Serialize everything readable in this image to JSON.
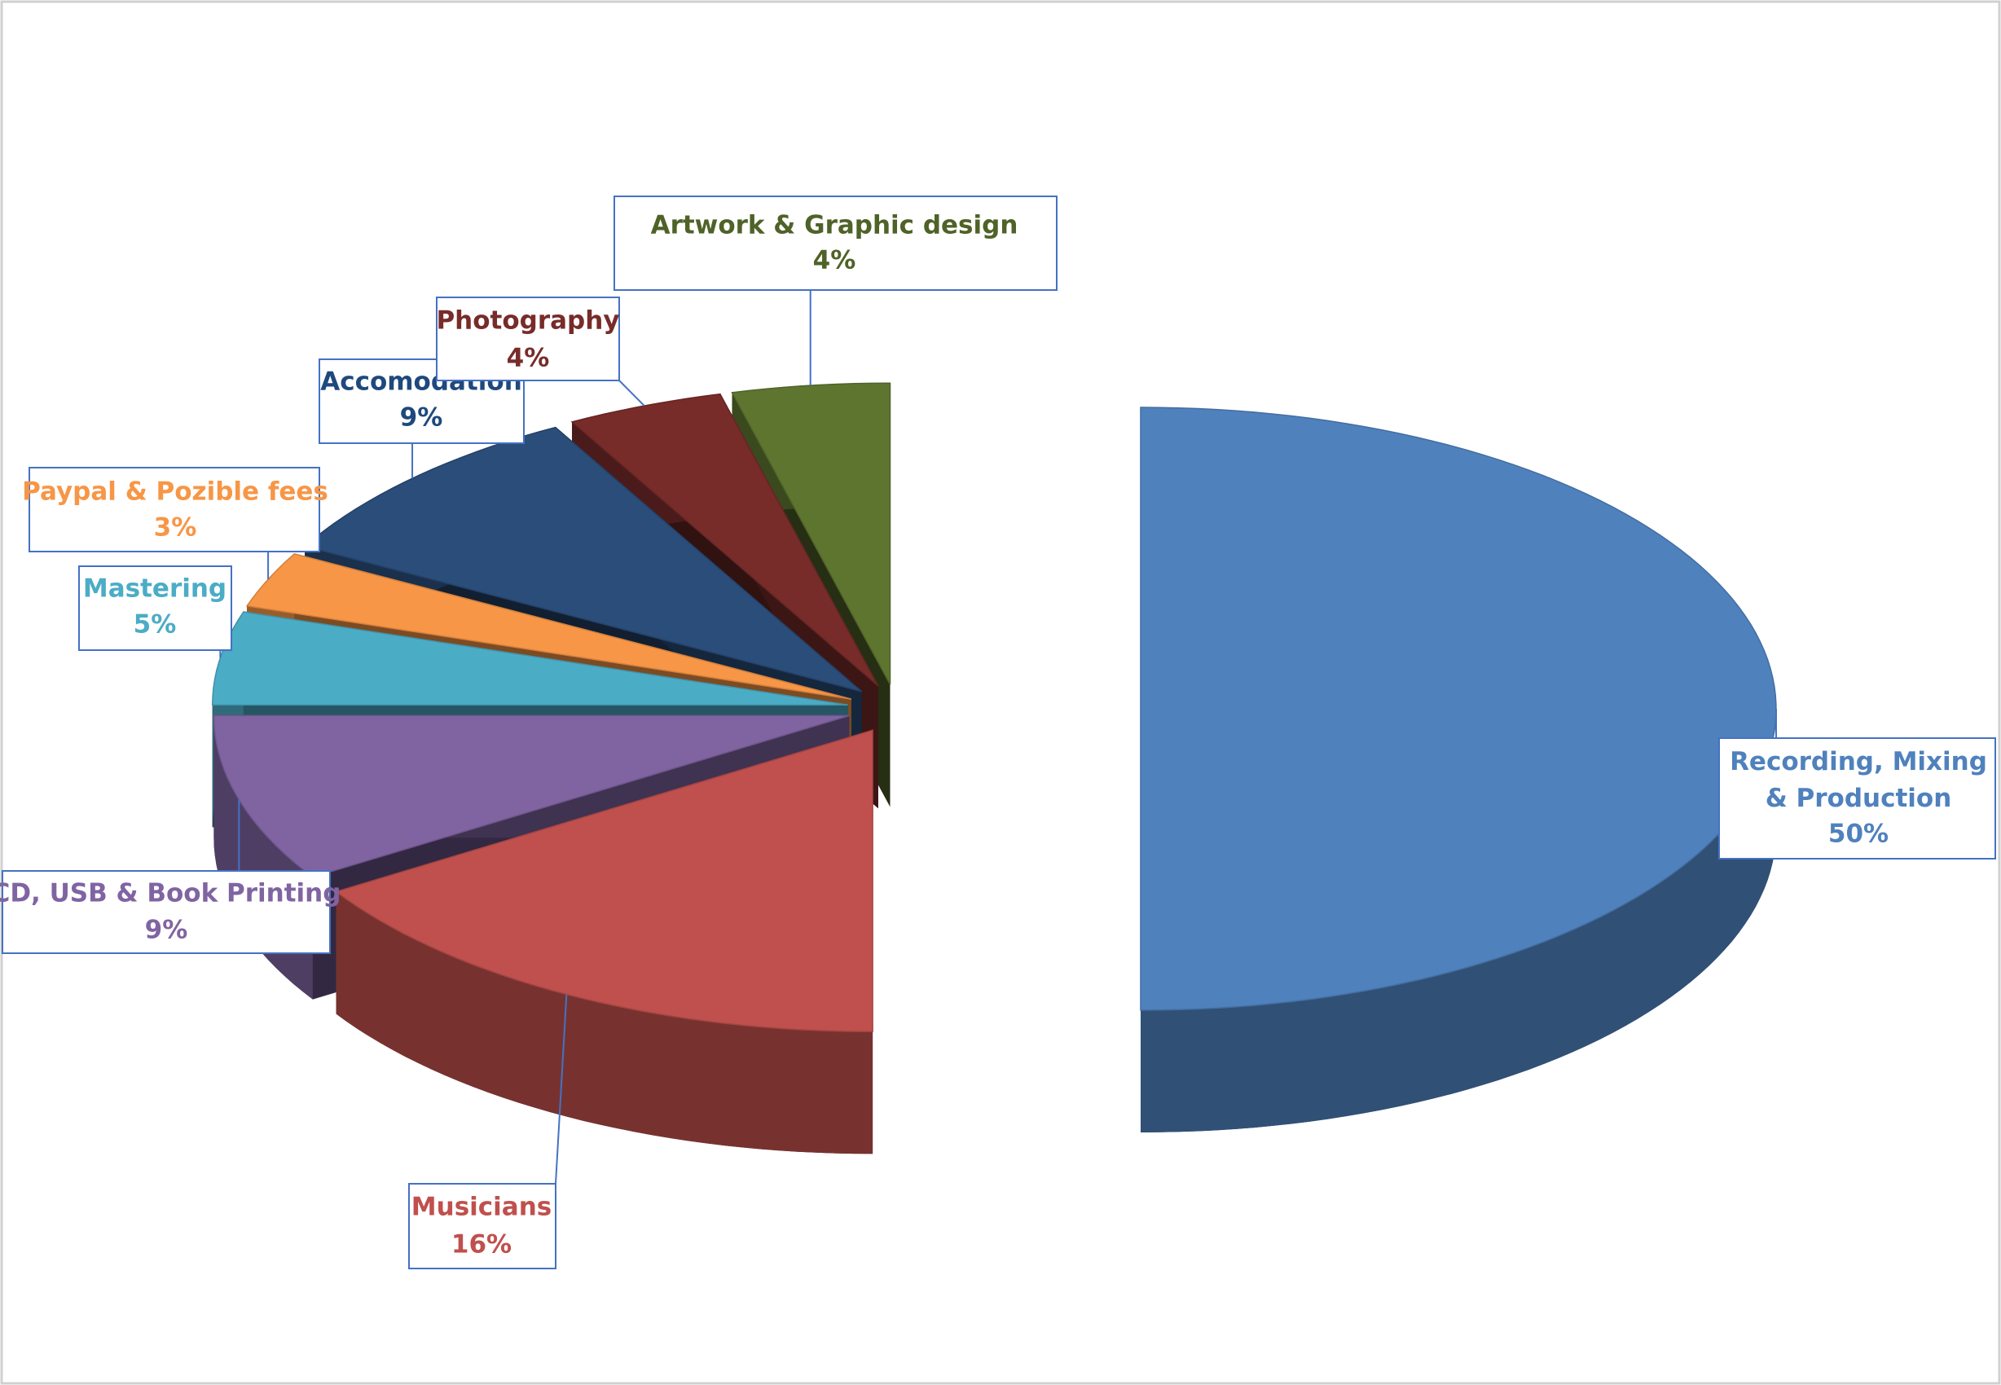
{
  "chart_data": {
    "type": "pie3d",
    "categories": [
      "Recording, Mixing & Production",
      "Musicians",
      "CD, USB & Book Printing",
      "Mastering",
      "Paypal & Pozible fees",
      "Accomodation",
      "Photography",
      "Artwork & Graphic design"
    ],
    "values": [
      50,
      16,
      9,
      5,
      3,
      9,
      4,
      4
    ],
    "value_labels": [
      "50%",
      "16%",
      "9%",
      "5%",
      "3%",
      "9%",
      "4%",
      "4%"
    ],
    "colors": [
      "#4f81bd",
      "#c0504d",
      "#8064a2",
      "#4bacc6",
      "#f79646",
      "#2a4d7a",
      "#772c2a",
      "#5e7530"
    ],
    "label_colors": [
      "#4f81bd",
      "#c0504d",
      "#8064a2",
      "#4bacc6",
      "#f79646",
      "#1f497d",
      "#772c2a",
      "#4f6228"
    ]
  }
}
